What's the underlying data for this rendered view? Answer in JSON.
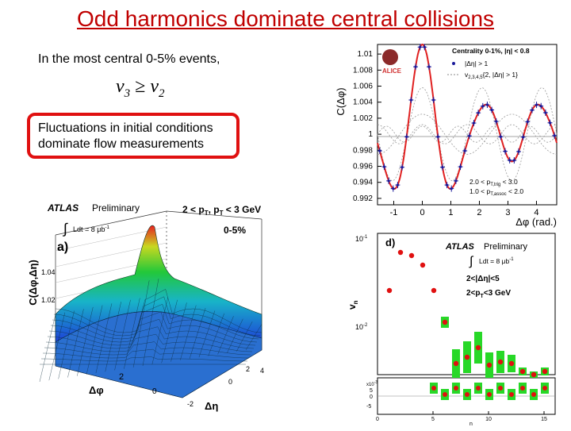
{
  "slide": {
    "title": "Odd harmonics dominate central collisions",
    "intro": "In the most central 0-5% events,",
    "formula": {
      "lhs": "v",
      "lhs_sub": "3",
      "op": "≥",
      "rhs": "v",
      "rhs_sub": "2"
    },
    "callout": {
      "line1": "Fluctuations in initial conditions",
      "line2": "dominate flow measurements"
    }
  },
  "colors": {
    "title": "#c00000",
    "callout_border": "#e01010",
    "fit_curve": "#e02020",
    "points": "#1a1a9a",
    "marker_red": "#e01010",
    "box_green": "#27d827"
  },
  "alice_plot": {
    "ylabel": "C(Δφ)",
    "xlabel": "Δφ (rad.)",
    "logo_text": "ALICE",
    "legend": {
      "title": "Centrality 0-1%, |η| < 0.8",
      "entry1": "|Δη| > 1",
      "entry2": "v",
      "entry2_sub": "2,3,4,5",
      "entry2_tail": "{2, |Δη| > 1}"
    },
    "cuts": {
      "line1": "2.0 < p",
      "line1_sub": "T,trig",
      "line1_tail": " < 3.0",
      "line2": "1.0 < p",
      "line2_sub": "T,assoc",
      "line2_tail": " < 2.0"
    },
    "yticks": [
      "0.992",
      "0.994",
      "0.996",
      "0.998",
      "1",
      "1.002",
      "1.004",
      "1.006",
      "1.008",
      "1.01"
    ],
    "xticks": [
      "-1",
      "0",
      "1",
      "2",
      "3",
      "4"
    ]
  },
  "atlas_plot": {
    "brand": "ATLAS",
    "status": "Preliminary",
    "pt_cut": "2 < p",
    "pt_sub": "T",
    "pt_mid": ", p",
    "pt_sub2": "T",
    "pt_tail": " < 3 GeV",
    "centrality": "0-5%",
    "lumi_label": "Ldt = 8 μb",
    "lumi_sup": "-1",
    "panel_label": "a)",
    "zlabel": "C(Δφ,Δη)",
    "zticks": [
      "1.02",
      "1.04"
    ],
    "xlabel": "Δφ",
    "ylabel": "Δη",
    "phi_ticks": [
      "0",
      "2"
    ],
    "eta_ticks": [
      "-2",
      "0",
      "2",
      "4"
    ]
  },
  "vn_plot": {
    "panel_label": "d)",
    "brand": "ATLAS",
    "status": "Preliminary",
    "lumi_label": "Ldt = 8 μb",
    "lumi_sup": "-1",
    "eta_cut": "2<|Δη|<5",
    "pt_cut": "2<p",
    "pt_sub": "T",
    "pt_tail": "<3 GeV",
    "ylabel": "v",
    "ylabel_sub": "n",
    "yticks": [
      "10",
      "10"
    ],
    "ytick_exps": [
      "-1",
      "-2"
    ],
    "xlabel": "n",
    "xticks": [
      "0",
      "5",
      "10",
      "15"
    ],
    "lower_yticks": [
      "5",
      "0",
      "-5"
    ],
    "lower_exp": "x10",
    "lower_exp_sup": "-3"
  }
}
